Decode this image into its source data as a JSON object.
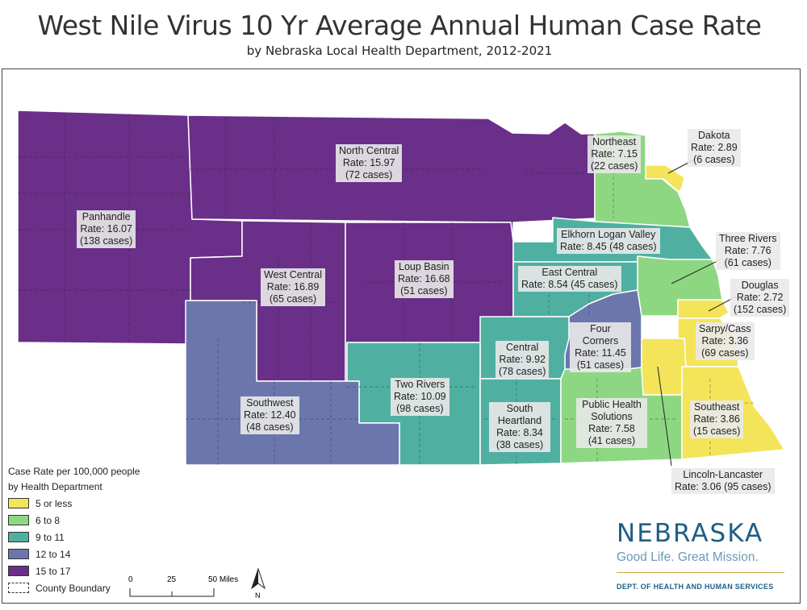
{
  "title": "West Nile Virus 10 Yr Average Annual Human Case Rate",
  "subtitle": "by Nebraska Local Health Department, 2012-2021",
  "colors": {
    "bin_5_or_less": "#f3e45a",
    "bin_6_to_8": "#8ed782",
    "bin_9_to_11": "#4fb0a2",
    "bin_12_to_14": "#6b77ac",
    "bin_15_to_17": "#6a2f88"
  },
  "regions": [
    {
      "id": "panhandle",
      "name": "Panhandle",
      "rate": "Rate: 16.07",
      "cases": "(138 cases)",
      "bin": "bin_15_to_17"
    },
    {
      "id": "north-central",
      "name": "North Central",
      "rate": "Rate: 15.97",
      "cases": "(72 cases)",
      "bin": "bin_15_to_17"
    },
    {
      "id": "west-central",
      "name": "West Central",
      "rate": "Rate: 16.89",
      "cases": "(65 cases)",
      "bin": "bin_15_to_17"
    },
    {
      "id": "loup-basin",
      "name": "Loup Basin",
      "rate": "Rate: 16.68",
      "cases": "(51 cases)",
      "bin": "bin_15_to_17"
    },
    {
      "id": "northeast",
      "name": "Northeast",
      "rate": "Rate: 7.15",
      "cases": "(22 cases)",
      "bin": "bin_6_to_8"
    },
    {
      "id": "dakota",
      "name": "Dakota",
      "rate": "Rate: 2.89",
      "cases": "(6 cases)",
      "bin": "bin_5_or_less"
    },
    {
      "id": "elkhorn-logan-valley",
      "name": "Elkhorn Logan Valley",
      "rate": "Rate: 8.45 (48 cases)",
      "cases": "",
      "bin": "bin_9_to_11"
    },
    {
      "id": "three-rivers",
      "name": "Three Rivers",
      "rate": "Rate: 7.76",
      "cases": "(61 cases)",
      "bin": "bin_6_to_8"
    },
    {
      "id": "east-central",
      "name": "East Central",
      "rate": "Rate: 8.54 (45 cases)",
      "cases": "",
      "bin": "bin_9_to_11"
    },
    {
      "id": "douglas",
      "name": "Douglas",
      "rate": "Rate: 2.72",
      "cases": "(152 cases)",
      "bin": "bin_5_or_less"
    },
    {
      "id": "four-corners",
      "name": "Four Corners",
      "rate": "Rate: 11.45",
      "cases": "(51 cases)",
      "bin": "bin_12_to_14"
    },
    {
      "id": "sarpy-cass",
      "name": "Sarpy/Cass",
      "rate": "Rate: 3.36",
      "cases": "(69 cases)",
      "bin": "bin_5_or_less"
    },
    {
      "id": "central",
      "name": "Central",
      "rate": "Rate: 9.92",
      "cases": "(78 cases)",
      "bin": "bin_9_to_11"
    },
    {
      "id": "two-rivers",
      "name": "Two Rivers",
      "rate": "Rate: 10.09",
      "cases": "(98 cases)",
      "bin": "bin_9_to_11"
    },
    {
      "id": "southwest",
      "name": "Southwest",
      "rate": "Rate: 12.40",
      "cases": "(48 cases)",
      "bin": "bin_12_to_14"
    },
    {
      "id": "south-heartland",
      "name": "South Heartland",
      "rate": "Rate: 8.34",
      "cases": "(38 cases)",
      "bin": "bin_9_to_11"
    },
    {
      "id": "public-health-solutions",
      "name": "Public Health Solutions",
      "rate": "Rate: 7.58",
      "cases": "(41 cases)",
      "bin": "bin_6_to_8"
    },
    {
      "id": "southeast",
      "name": "Southeast",
      "rate": "Rate: 3.86",
      "cases": "(15 cases)",
      "bin": "bin_5_or_less"
    },
    {
      "id": "lincoln-lancaster",
      "name": "Lincoln-Lancaster",
      "rate": "Rate: 3.06 (95 cases)",
      "cases": "",
      "bin": "bin_5_or_less"
    }
  ],
  "legend": {
    "title_line1": "Case Rate per 100,000 people",
    "title_line2": "by Health Department",
    "items": [
      {
        "label": "5 or less",
        "bin": "bin_5_or_less"
      },
      {
        "label": "6 to 8",
        "bin": "bin_6_to_8"
      },
      {
        "label": "9 to 11",
        "bin": "bin_9_to_11"
      },
      {
        "label": "12 to 14",
        "bin": "bin_12_to_14"
      },
      {
        "label": "15 to 17",
        "bin": "bin_15_to_17"
      }
    ],
    "boundary_label": "County Boundary"
  },
  "scale": {
    "t0": "0",
    "t1": "25",
    "t2": "50 Miles",
    "north": "N"
  },
  "logo": {
    "wordmark": "NEBRASKA",
    "tagline": "Good Life. Great Mission.",
    "dept": "DEPT. OF HEALTH AND HUMAN SERVICES"
  }
}
